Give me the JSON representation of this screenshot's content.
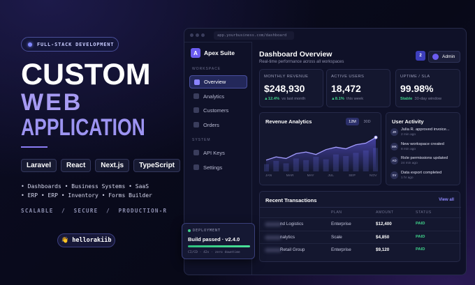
{
  "badge": "FULL-STACK DEVELOPMENT",
  "headline": {
    "line1": "CUSTOM",
    "line2": "WEB",
    "line3": "APPLICATION"
  },
  "tags": [
    "Laravel",
    "React",
    "Next.js",
    "TypeScript"
  ],
  "features": [
    "• Dashboards • Business Systems • SaaS",
    "• ERP • ERP • Inventory • Forms Builder"
  ],
  "qualities": "SCALABLE  /  SECURE  /  PRODUCTION-R",
  "handle": "👋 hellorakiib",
  "dashboard": {
    "url": "app.yourbusiness.com/dashboard",
    "brand_logo": "A",
    "brand": "Apex Suite",
    "sections": [
      {
        "label": "WORKSPACE",
        "items": [
          "Overview",
          "Analytics",
          "Customers",
          "Orders"
        ]
      },
      {
        "label": "SYSTEM",
        "items": [
          "API Keys",
          "Settings"
        ]
      }
    ],
    "title": "Dashboard Overview",
    "subtitle": "Real-time performance across all workspaces",
    "notifications": "2",
    "user": "Admin",
    "kpis": [
      {
        "label": "MONTHLY REVENUE",
        "value": "$248,930",
        "change": "▲12.4%",
        "note": "vs last month"
      },
      {
        "label": "ACTIVE USERS",
        "value": "18,472",
        "change": "▲8.1%",
        "note": "this week"
      },
      {
        "label": "UPTIME / SLA",
        "value": "99.98%",
        "change": "Stable",
        "note": "30-day window"
      }
    ],
    "revenue_chart": {
      "title": "Revenue Analytics",
      "toggles": [
        "12M",
        "30D"
      ],
      "months": [
        "JAN",
        "MAR",
        "MAY",
        "JUL",
        "SEP",
        "NOV"
      ],
      "line": [
        28,
        36,
        32,
        44,
        48,
        42,
        54,
        60,
        56,
        66,
        70,
        84
      ],
      "bars": [
        18,
        26,
        20,
        32,
        28,
        36,
        30,
        42,
        38,
        46,
        52,
        58
      ],
      "ylim": [
        0,
        100
      ]
    },
    "activity": {
      "title": "User Activity",
      "items": [
        {
          "initials": "JR",
          "text": "Julia R. approved invoice...",
          "time": "2 min ago"
        },
        {
          "initials": "MK",
          "text": "New workspace created",
          "time": "8 min ago"
        },
        {
          "initials": "AD",
          "text": "Role permissions updated",
          "time": "24 min ago"
        },
        {
          "initials": "SV",
          "text": "Data export completed",
          "time": "1 hr ago"
        }
      ]
    },
    "transactions": {
      "title": "Recent Transactions",
      "link": "View all",
      "headers": [
        "PLAN",
        "AMOUNT",
        "STATUS"
      ],
      "rows": [
        [
          "nd Logistics",
          "Enterprise",
          "$12,400",
          "PAID"
        ],
        [
          "nalytics",
          "Scale",
          "$4,850",
          "PAID"
        ],
        [
          "Retail Group",
          "Enterprise",
          "$9,120",
          "PAID"
        ]
      ]
    }
  },
  "deployment": {
    "label": "DEPLOYMENT",
    "title": "Build passed · v2.4.0",
    "details": "CI/CD · 42s · zero downtime"
  }
}
